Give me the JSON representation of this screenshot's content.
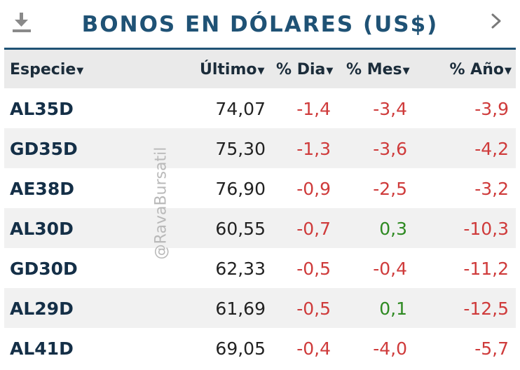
{
  "header": {
    "title": "BONOS EN DÓLARES (US$)",
    "download_icon": "download-icon",
    "next_icon": "chevron-right-icon"
  },
  "table": {
    "columns": [
      "Especie",
      "Último",
      "% Dia",
      "% Mes",
      "% Año"
    ],
    "sort_icon": "caret-down-icon",
    "rows": [
      {
        "especie": "AL35D",
        "ultimo": "74,07",
        "dia": "-1,4",
        "mes": "-3,4",
        "ano": "-3,9"
      },
      {
        "especie": "GD35D",
        "ultimo": "75,30",
        "dia": "-1,3",
        "mes": "-3,6",
        "ano": "-4,2"
      },
      {
        "especie": "AE38D",
        "ultimo": "76,90",
        "dia": "-0,9",
        "mes": "-2,5",
        "ano": "-3,2"
      },
      {
        "especie": "AL30D",
        "ultimo": "60,55",
        "dia": "-0,7",
        "mes": "0,3",
        "ano": "-10,3"
      },
      {
        "especie": "GD30D",
        "ultimo": "62,33",
        "dia": "-0,5",
        "mes": "-0,4",
        "ano": "-11,2"
      },
      {
        "especie": "AL29D",
        "ultimo": "61,69",
        "dia": "-0,5",
        "mes": "0,1",
        "ano": "-12,5"
      },
      {
        "especie": "AL41D",
        "ultimo": "69,05",
        "dia": "-0,4",
        "mes": "-4,0",
        "ano": "-5,7"
      }
    ]
  },
  "watermark": "@RavaBursatil",
  "colors": {
    "title": "#1f5275",
    "negative": "#cf3b3b",
    "positive": "#2e8a22",
    "header_bg": "#eaeaea"
  }
}
